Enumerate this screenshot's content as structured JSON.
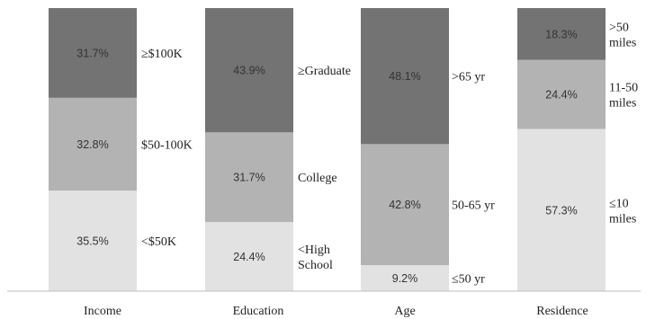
{
  "chart_data": {
    "type": "bar",
    "stacked": true,
    "normalized_to_percent": true,
    "categories": [
      "Income",
      "Education",
      "Age",
      "Residence"
    ],
    "bars": [
      {
        "name": "Income",
        "segments": [
          {
            "label_lines": [
              "<$50K"
            ],
            "value": 35.5,
            "text": "35.5%",
            "color": "#e2e2e2"
          },
          {
            "label_lines": [
              "$50-100K"
            ],
            "value": 32.8,
            "text": "32.8%",
            "color": "#b3b3b3"
          },
          {
            "label_lines": [
              "≥$100K"
            ],
            "value": 31.7,
            "text": "31.7%",
            "color": "#737373"
          }
        ]
      },
      {
        "name": "Education",
        "segments": [
          {
            "label_lines": [
              "<High",
              "School"
            ],
            "value": 24.4,
            "text": "24.4%",
            "color": "#e2e2e2"
          },
          {
            "label_lines": [
              "College"
            ],
            "value": 31.7,
            "text": "31.7%",
            "color": "#b3b3b3"
          },
          {
            "label_lines": [
              "≥Graduate"
            ],
            "value": 43.9,
            "text": "43.9%",
            "color": "#737373"
          }
        ]
      },
      {
        "name": "Age",
        "segments": [
          {
            "label_lines": [
              "≤50  yr"
            ],
            "value": 9.2,
            "text": "9.2%",
            "color": "#e2e2e2"
          },
          {
            "label_lines": [
              "50-65 yr"
            ],
            "value": 42.8,
            "text": "42.8%",
            "color": "#b3b3b3"
          },
          {
            "label_lines": [
              ">65 yr"
            ],
            "value": 48.1,
            "text": "48.1%",
            "color": "#737373"
          }
        ]
      },
      {
        "name": "Residence",
        "segments": [
          {
            "label_lines": [
              "≤10",
              "miles"
            ],
            "value": 57.3,
            "text": "57.3%",
            "color": "#e2e2e2"
          },
          {
            "label_lines": [
              "11-50",
              "miles"
            ],
            "value": 24.4,
            "text": "24.4%",
            "color": "#b3b3b3"
          },
          {
            "label_lines": [
              ">50",
              "miles"
            ],
            "value": 18.3,
            "text": "18.3%",
            "color": "#737373"
          }
        ]
      }
    ],
    "ylim": [
      0,
      100
    ],
    "grid": false,
    "legend": "none"
  }
}
